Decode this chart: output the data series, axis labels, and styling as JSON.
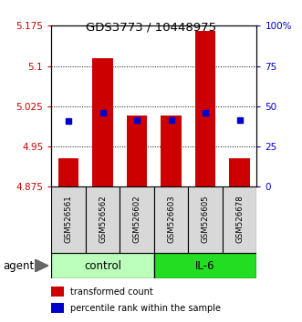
{
  "title": "GDS3773 / 10448975",
  "samples": [
    "GSM526561",
    "GSM526562",
    "GSM526602",
    "GSM526603",
    "GSM526605",
    "GSM526678"
  ],
  "groups": [
    "control",
    "control",
    "control",
    "IL-6",
    "IL-6",
    "IL-6"
  ],
  "red_values": [
    4.928,
    5.115,
    5.007,
    5.007,
    5.165,
    4.928
  ],
  "blue_values": [
    4.998,
    5.012,
    5.0,
    4.999,
    5.012,
    4.999
  ],
  "ymin": 4.875,
  "ymax": 5.175,
  "yticks_left": [
    4.875,
    4.95,
    5.025,
    5.1,
    5.175
  ],
  "yticks_right_vals": [
    0,
    25,
    50,
    75,
    100
  ],
  "bar_bottom": 4.875,
  "red_color": "#cc0000",
  "blue_color": "#0000cc",
  "ctrl_color": "#bbffbb",
  "il6_color": "#22dd22",
  "legend_red": "transformed count",
  "legend_blue": "percentile rank within the sample",
  "bar_width": 0.6
}
